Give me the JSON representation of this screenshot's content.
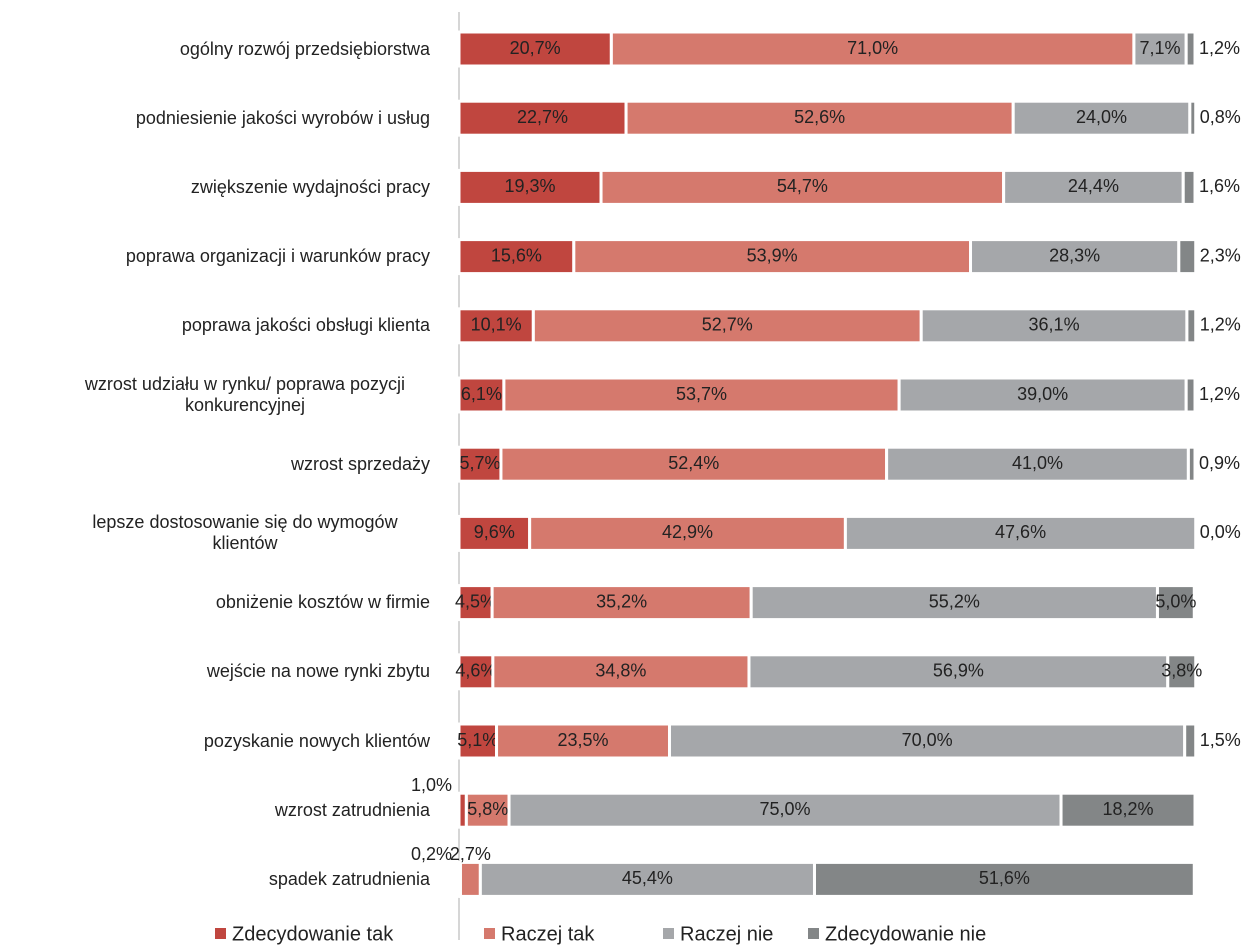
{
  "chart_data": {
    "type": "stacked_barh",
    "categories": [
      "ogólny rozwój przedsiębiorstwa",
      "podniesienie jakości wyrobów i usług",
      "zwiększenie wydajności pracy",
      "poprawa organizacji i warunków pracy",
      "poprawa jakości obsługi klienta",
      "wzrost udziału w rynku/ poprawa pozycji konkurencyjnej",
      "wzrost sprzedaży",
      "lepsze dostosowanie się do wymogów klientów",
      "obniżenie kosztów w firmie",
      "wejście na nowe rynki zbytu",
      "pozyskanie nowych klientów",
      "wzrost zatrudnienia",
      "spadek zatrudnienia"
    ],
    "series": [
      {
        "name": "Zdecydowanie tak",
        "color": "#c0463f",
        "values": [
          20.7,
          22.7,
          19.3,
          15.6,
          10.1,
          6.1,
          5.7,
          9.6,
          4.5,
          4.6,
          5.1,
          1.0,
          0.2
        ],
        "value_labels": [
          "20,7%",
          "22,7%",
          "19,3%",
          "15,6%",
          "10,1%",
          "6,1%",
          "5,7%",
          "9,6%",
          "4,5%",
          "4,6%",
          "5,1%",
          "1,0%",
          "0,2%"
        ]
      },
      {
        "name": "Raczej tak",
        "color": "#d5796d",
        "values": [
          71.0,
          52.6,
          54.7,
          53.9,
          52.7,
          53.7,
          52.4,
          42.9,
          35.2,
          34.8,
          23.5,
          5.8,
          2.7
        ],
        "value_labels": [
          "71,0%",
          "52,6%",
          "54,7%",
          "53,9%",
          "52,7%",
          "53,7%",
          "52,4%",
          "42,9%",
          "35,2%",
          "34,8%",
          "23,5%",
          "5,8%",
          "2,7%"
        ]
      },
      {
        "name": "Raczej nie",
        "color": "#a5a7aa",
        "values": [
          7.1,
          24.0,
          24.4,
          28.3,
          36.1,
          39.0,
          41.0,
          47.6,
          55.2,
          56.9,
          70.0,
          75.0,
          45.4
        ],
        "value_labels": [
          "7,1%",
          "24,0%",
          "24,4%",
          "28,3%",
          "36,1%",
          "39,0%",
          "41,0%",
          "47,6%",
          "55,2%",
          "56,9%",
          "70,0%",
          "75,0%",
          "45,4%"
        ]
      },
      {
        "name": "Zdecydowanie nie",
        "color": "#838687",
        "values": [
          1.2,
          0.8,
          1.6,
          2.3,
          1.2,
          1.2,
          0.9,
          0.0,
          5.0,
          3.8,
          1.5,
          18.2,
          51.6
        ],
        "value_labels": [
          "1,2%",
          "0,8%",
          "1,6%",
          "2,3%",
          "1,2%",
          "1,2%",
          "0,9%",
          "0,0%",
          "5,0%",
          "3,8%",
          "1,5%",
          "18,2%",
          "51,6%"
        ]
      }
    ],
    "xlim": [
      0,
      100
    ]
  }
}
